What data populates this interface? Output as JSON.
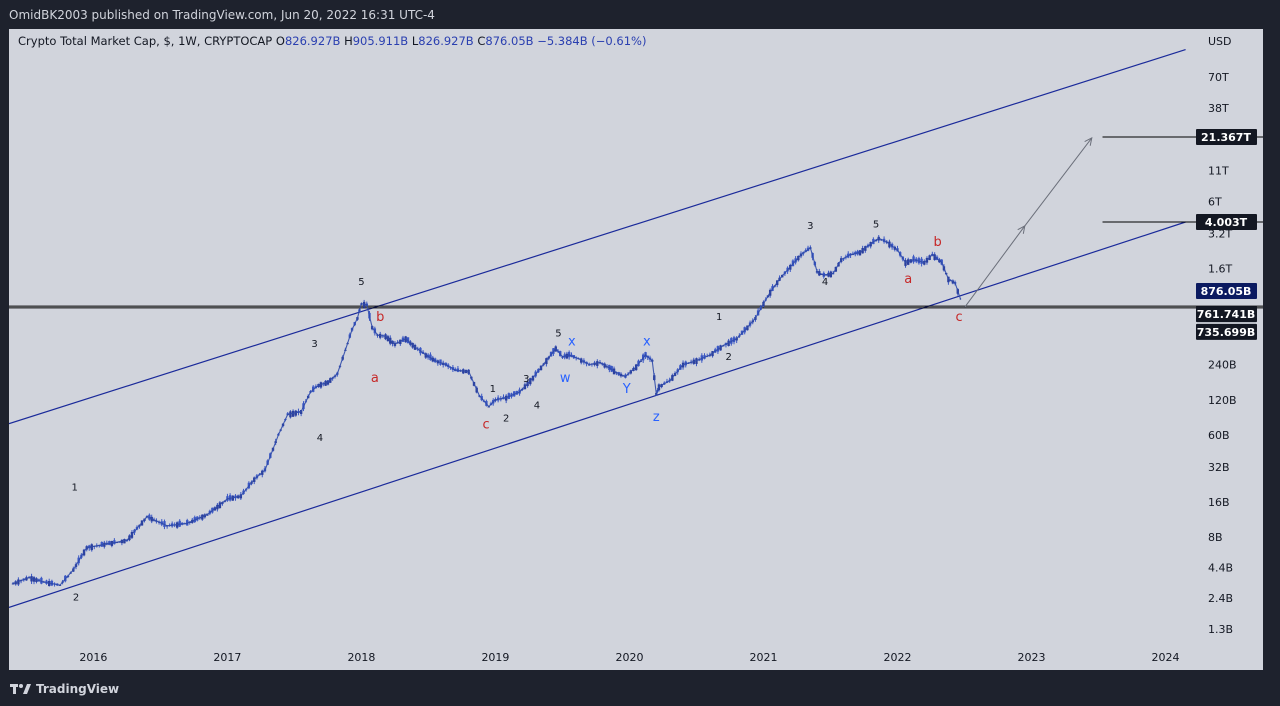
{
  "header": {
    "publisher": "OmidBK2003 published on TradingView.com, Jun 20, 2022 16:31 UTC-4"
  },
  "footer": {
    "brand": "TradingView",
    "logo_icon": "tradingview-logo-icon"
  },
  "colors": {
    "background": "#1e222d",
    "chart_bg": "#d1d4dc",
    "channel_line": "#1a2a9a",
    "candle": "#3a57c4",
    "wave_black": "#131722",
    "wave_red": "#c62828",
    "wave_blue": "#2962ff",
    "label_dark": "#131722",
    "label_current": "#0b1a60"
  },
  "chart_data": {
    "type": "line",
    "title": "Crypto Total Market Cap, $, 1W, CRYPTOCAP",
    "ohlc": {
      "open_label": "O",
      "open": "826.927B",
      "high_label": "H",
      "high": "905.911B",
      "low_label": "L",
      "low": "826.927B",
      "close_label": "C",
      "close": "876.05B",
      "change": "−5.384B (−0.61%)"
    },
    "y_scale": "log",
    "currency": "USD",
    "y_ticks": [
      "70T",
      "38T",
      "11T",
      "6T",
      "3.2T",
      "1.6T",
      "240B",
      "120B",
      "60B",
      "32B",
      "16B",
      "8B",
      "4.4B",
      "2.4B",
      "1.3B"
    ],
    "y_tick_values": [
      70000,
      38000,
      11000,
      6000,
      3200,
      1600,
      240,
      120,
      60,
      32,
      16,
      8,
      4.4,
      2.4,
      1.3
    ],
    "x_ticks": [
      "2016",
      "2017",
      "2018",
      "2019",
      "2020",
      "2021",
      "2022",
      "2023",
      "2024"
    ],
    "x_tick_values": [
      2016,
      2017,
      2018,
      2019,
      2020,
      2021,
      2022,
      2023,
      2024
    ],
    "xlim": [
      2015.37,
      2024.25
    ],
    "ylim_billions": [
      0.88,
      180000
    ],
    "series": [
      {
        "name": "Total market cap (weekly close, $B)",
        "x": [
          2015.4,
          2015.52,
          2015.63,
          2015.75,
          2015.85,
          2015.95,
          2016.1,
          2016.25,
          2016.4,
          2016.47,
          2016.55,
          2016.7,
          2016.85,
          2017.0,
          2017.1,
          2017.2,
          2017.28,
          2017.38,
          2017.45,
          2017.55,
          2017.62,
          2017.68,
          2017.75,
          2017.82,
          2017.88,
          2017.93,
          2017.97,
          2018.0,
          2018.04,
          2018.08,
          2018.12,
          2018.18,
          2018.25,
          2018.33,
          2018.4,
          2018.48,
          2018.55,
          2018.63,
          2018.7,
          2018.8,
          2018.88,
          2018.95,
          2019.0,
          2019.08,
          2019.18,
          2019.28,
          2019.38,
          2019.45,
          2019.5,
          2019.55,
          2019.62,
          2019.7,
          2019.78,
          2019.85,
          2019.92,
          2019.97,
          2020.05,
          2020.12,
          2020.17,
          2020.2,
          2020.22,
          2020.3,
          2020.4,
          2020.5,
          2020.6,
          2020.7,
          2020.8,
          2020.88,
          2020.94,
          2021.0,
          2021.05,
          2021.12,
          2021.2,
          2021.28,
          2021.35,
          2021.4,
          2021.45,
          2021.52,
          2021.58,
          2021.65,
          2021.72,
          2021.8,
          2021.86,
          2021.92,
          2022.0,
          2022.06,
          2022.12,
          2022.2,
          2022.26,
          2022.33,
          2022.38,
          2022.43,
          2022.47
        ],
        "values": [
          3.2,
          3.6,
          3.3,
          3.1,
          4.2,
          6.5,
          7.0,
          7.5,
          12.0,
          11.0,
          10.0,
          10.5,
          12.5,
          17.0,
          18.0,
          25.0,
          30.0,
          60.0,
          90.0,
          95.0,
          140.0,
          160.0,
          170.0,
          200.0,
          320.0,
          480.0,
          600.0,
          800.0,
          780.0,
          500.0,
          430.0,
          420.0,
          360.0,
          400.0,
          340.0,
          290.0,
          260.0,
          240.0,
          215.0,
          210.0,
          130.0,
          105.0,
          120.0,
          125.0,
          140.0,
          185.0,
          260.0,
          330.0,
          280.0,
          290.0,
          270.0,
          240.0,
          250.0,
          225.0,
          200.0,
          190.0,
          230.0,
          290.0,
          260.0,
          135.0,
          155.0,
          175.0,
          240.0,
          260.0,
          290.0,
          350.0,
          400.0,
          500.0,
          600.0,
          800.0,
          1000.0,
          1300.0,
          1650.0,
          2100.0,
          2400.0,
          1500.0,
          1400.0,
          1450.0,
          1900.0,
          2100.0,
          2200.0,
          2600.0,
          2900.0,
          2700.0,
          2300.0,
          1800.0,
          1900.0,
          1800.0,
          2100.0,
          1800.0,
          1300.0,
          1200.0,
          876.0
        ]
      }
    ],
    "channel": {
      "upper": [
        {
          "x": 2015.37,
          "y": 75
        },
        {
          "x": 2024.15,
          "y": 120000
        }
      ],
      "lower": [
        {
          "x": 2015.37,
          "y": 2.0
        },
        {
          "x": 2024.15,
          "y": 4000
        }
      ]
    },
    "horizontal_levels": [
      {
        "value": 761.741,
        "label": "761.741B"
      },
      {
        "value": 735.699,
        "label": "735.699B"
      }
    ],
    "targets": [
      {
        "value": 4003,
        "label": "4.003T",
        "x_start": 2023.53
      },
      {
        "value": 21367,
        "label": "21.367T",
        "x_start": 2023.53
      }
    ],
    "current_price": {
      "value": 876.05,
      "label": "876.05B"
    },
    "projection_path": [
      {
        "x": 2022.5,
        "y": 740
      },
      {
        "x": 2022.95,
        "y": 3700
      },
      {
        "x": 2023.45,
        "y": 21000
      }
    ],
    "wave_labels": [
      {
        "text": "1",
        "x": 2015.86,
        "y": 20,
        "color": "black"
      },
      {
        "text": "2",
        "x": 2015.87,
        "y": 2.3,
        "color": "black"
      },
      {
        "text": "3",
        "x": 2017.65,
        "y": 340,
        "color": "black"
      },
      {
        "text": "4",
        "x": 2017.69,
        "y": 53,
        "color": "black"
      },
      {
        "text": "5",
        "x": 2018.0,
        "y": 1160,
        "color": "black"
      },
      {
        "text": "b",
        "x": 2018.14,
        "y": 570,
        "color": "red"
      },
      {
        "text": "a",
        "x": 2018.1,
        "y": 170,
        "color": "red"
      },
      {
        "text": "1",
        "x": 2018.98,
        "y": 140,
        "color": "black"
      },
      {
        "text": "2",
        "x": 2019.08,
        "y": 78,
        "color": "black"
      },
      {
        "text": "c",
        "x": 2018.93,
        "y": 68,
        "color": "red"
      },
      {
        "text": "3",
        "x": 2019.23,
        "y": 170,
        "color": "black"
      },
      {
        "text": "4",
        "x": 2019.31,
        "y": 101,
        "color": "black"
      },
      {
        "text": "5",
        "x": 2019.47,
        "y": 420,
        "color": "black"
      },
      {
        "text": "x",
        "x": 2019.57,
        "y": 350,
        "color": "blue"
      },
      {
        "text": "w",
        "x": 2019.52,
        "y": 170,
        "color": "blue"
      },
      {
        "text": "Y",
        "x": 2019.98,
        "y": 137,
        "color": "blue"
      },
      {
        "text": "x",
        "x": 2020.13,
        "y": 350,
        "color": "blue"
      },
      {
        "text": "z",
        "x": 2020.2,
        "y": 79,
        "color": "blue"
      },
      {
        "text": "1",
        "x": 2020.67,
        "y": 580,
        "color": "black"
      },
      {
        "text": "2",
        "x": 2020.74,
        "y": 262,
        "color": "black"
      },
      {
        "text": "3",
        "x": 2021.35,
        "y": 3500,
        "color": "black"
      },
      {
        "text": "4",
        "x": 2021.46,
        "y": 1150,
        "color": "black"
      },
      {
        "text": "5",
        "x": 2021.84,
        "y": 3600,
        "color": "black"
      },
      {
        "text": "b",
        "x": 2022.3,
        "y": 2500,
        "color": "red"
      },
      {
        "text": "a",
        "x": 2022.08,
        "y": 1200,
        "color": "red"
      },
      {
        "text": "c",
        "x": 2022.46,
        "y": 570,
        "color": "red"
      }
    ]
  }
}
